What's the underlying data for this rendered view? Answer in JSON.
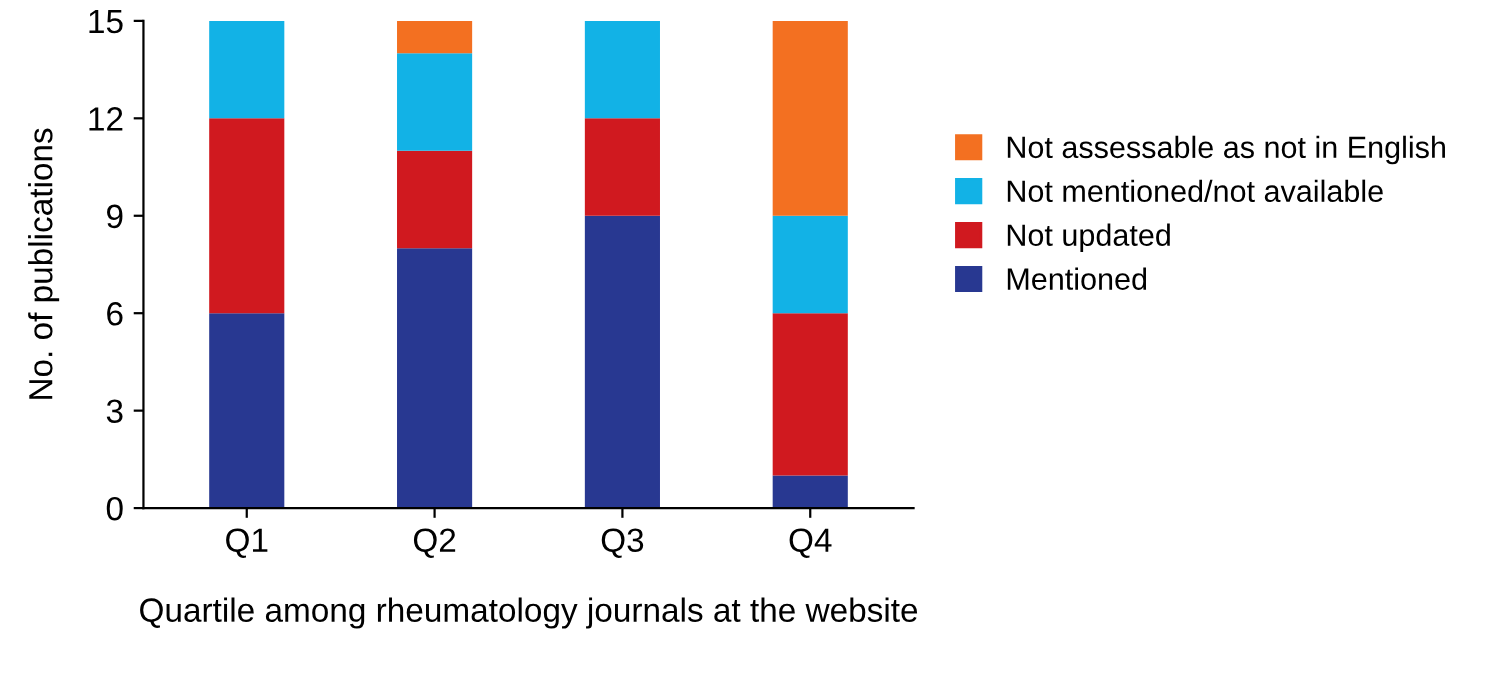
{
  "chart_data": {
    "type": "bar",
    "stacked": true,
    "categories": [
      "Q1",
      "Q2",
      "Q3",
      "Q4"
    ],
    "series": [
      {
        "name": "Mentioned",
        "color": "#283891",
        "values": [
          6,
          8,
          9,
          1
        ]
      },
      {
        "name": "Not updated",
        "color": "#d0191f",
        "values": [
          6,
          3,
          3,
          5
        ]
      },
      {
        "name": "Not mentioned/not available",
        "color": "#12b2e6",
        "values": [
          3,
          3,
          3,
          3
        ]
      },
      {
        "name": "Not assessable as not in English",
        "color": "#f37021",
        "values": [
          0,
          1,
          0,
          6
        ]
      }
    ],
    "xlabel": "Quartile among rheumatology journals at the website",
    "ylabel": "No. of publications",
    "ylim": [
      0,
      15
    ],
    "yticks": [
      0,
      3,
      6,
      9,
      12,
      15
    ],
    "grid": false,
    "legend": "right"
  }
}
